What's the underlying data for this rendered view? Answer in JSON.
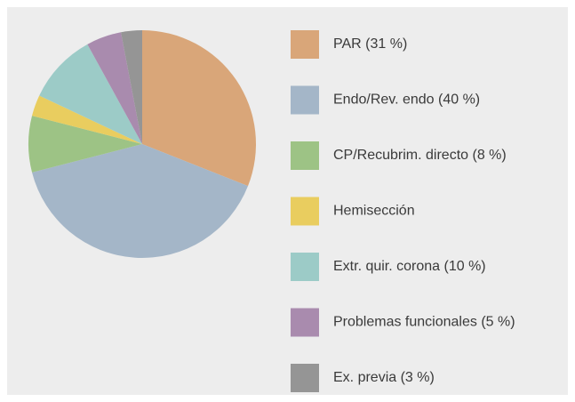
{
  "chart_data": {
    "type": "pie",
    "categories": [
      "PAR (31 %)",
      "Endo/Rev. endo (40 %)",
      "CP/Recubrim. directo (8 %)",
      "Hemisección",
      "Extr. quir. corona (10 %)",
      "Problemas funcionales (5 %)",
      "Ex. previa (3 %)"
    ],
    "values": [
      31,
      40,
      8,
      3,
      10,
      5,
      3
    ],
    "colors": [
      "#d9a679",
      "#a4b6c8",
      "#9dc385",
      "#e9cd5f",
      "#9ccbc7",
      "#a98bae",
      "#959595"
    ],
    "legend": "right"
  }
}
